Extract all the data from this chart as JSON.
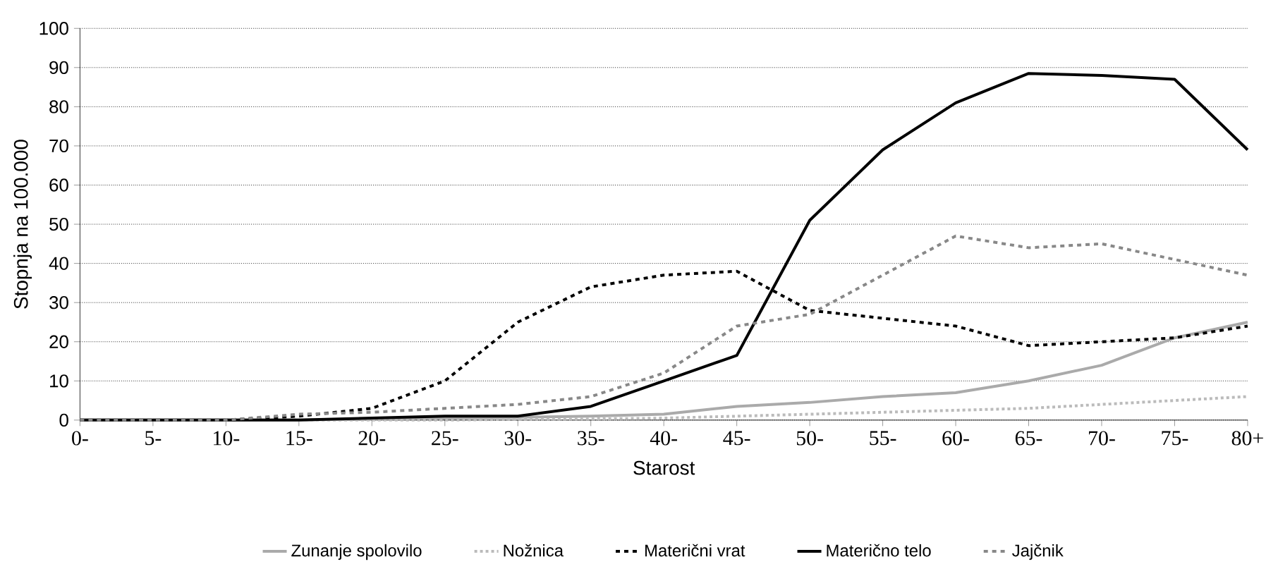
{
  "chart_data": {
    "type": "line",
    "xlabel": "Starost",
    "ylabel": "Stopnja na 100.000",
    "categories": [
      "0-",
      "5-",
      "10-",
      "15-",
      "20-",
      "25-",
      "30-",
      "35-",
      "40-",
      "45-",
      "50-",
      "55-",
      "60-",
      "65-",
      "70-",
      "75-",
      "80+"
    ],
    "series": [
      {
        "name": "Zunanje spolovilo",
        "color": "#aaaaaa",
        "line_style": "solid",
        "values": [
          0,
          0,
          0,
          0,
          0.3,
          0.5,
          0.7,
          1,
          1.5,
          3.5,
          4.5,
          6,
          7,
          10,
          14,
          21,
          25
        ]
      },
      {
        "name": "Nožnica",
        "color": "#bbbbbb",
        "line_style": "dotted",
        "values": [
          0,
          0,
          0,
          0,
          0,
          0,
          0.2,
          0.3,
          0.5,
          1,
          1.5,
          2,
          2.5,
          3,
          4,
          5,
          6
        ]
      },
      {
        "name": "Materični vrat",
        "color": "#000000",
        "line_style": "dashed",
        "values": [
          0,
          0,
          0,
          1,
          3,
          10,
          25,
          34,
          37,
          38,
          28,
          26,
          24,
          19,
          20,
          21,
          24
        ]
      },
      {
        "name": "Materično telo",
        "color": "#000000",
        "line_style": "solid",
        "values": [
          0,
          0,
          0,
          0,
          0.5,
          1,
          1,
          3.5,
          10,
          16.5,
          51,
          69,
          81,
          88.5,
          88,
          87,
          69
        ]
      },
      {
        "name": "Jajčnik",
        "color": "#888888",
        "line_style": "dashed",
        "values": [
          0,
          0,
          0,
          1.5,
          2,
          3,
          4,
          6,
          12,
          24,
          27,
          37,
          47,
          44,
          45,
          41,
          37
        ]
      }
    ],
    "ylim": [
      0,
      100
    ],
    "yticks": [
      0,
      10,
      20,
      30,
      40,
      50,
      60,
      70,
      80,
      90,
      100
    ],
    "grid": "y",
    "legend": "bottom",
    "marker": "none"
  }
}
